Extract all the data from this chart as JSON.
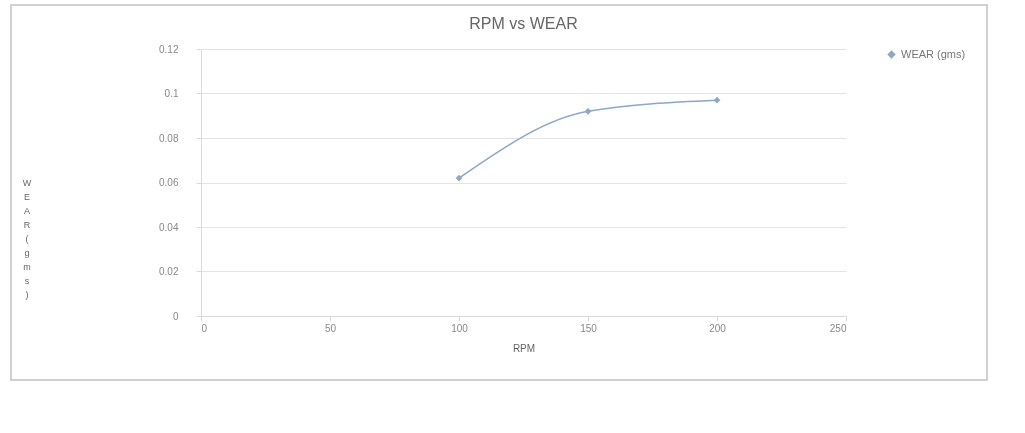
{
  "chart_data": {
    "type": "line",
    "title": "RPM  vs WEAR",
    "xlabel": "RPM",
    "ylabel": "WEAR(gms)",
    "x": [
      100,
      150,
      200
    ],
    "series": [
      {
        "name": "WEAR (gms)",
        "color": "#8fa6c8",
        "values": [
          0.062,
          0.092,
          0.097
        ]
      }
    ],
    "xlim": [
      0,
      250
    ],
    "xticks": [
      0,
      50,
      100,
      150,
      200,
      250
    ],
    "ylim": [
      0,
      0.12
    ],
    "yticks": [
      0,
      0.02,
      0.04,
      0.06,
      0.08,
      0.1,
      0.12
    ],
    "grid": "y",
    "legend": "right",
    "marker": "diamond",
    "line_style": "solid"
  }
}
